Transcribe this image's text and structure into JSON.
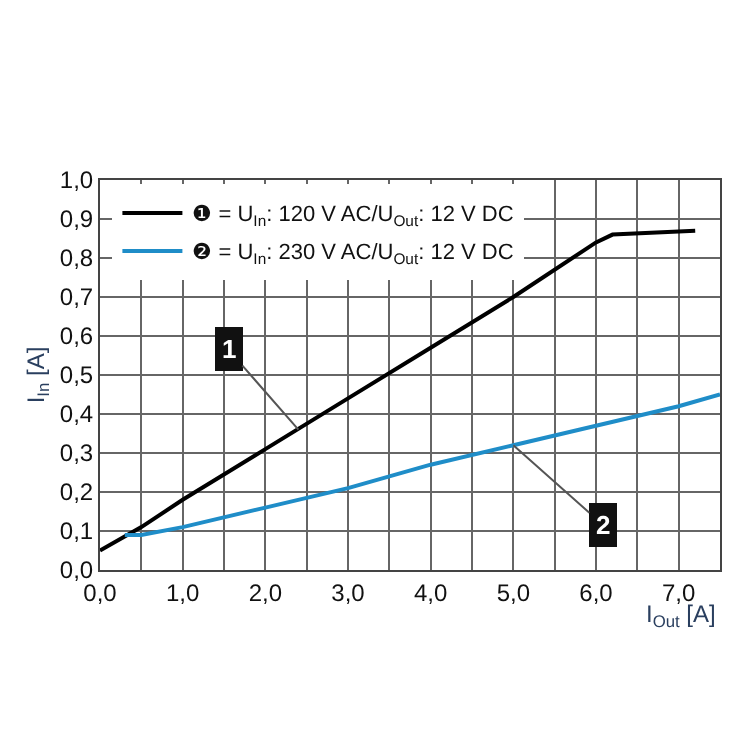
{
  "chart_data": {
    "type": "line",
    "xlabel": "I$_{Out}$ [A]",
    "ylabel": "I$_{In}$ [A]",
    "series": [
      {
        "name": "❶ = U$_{In}$: 120 V AC/U$_{Out}$: 12 V DC",
        "color": "#000000",
        "x": [
          0,
          0.5,
          1,
          2,
          3,
          4,
          5,
          6,
          6.2,
          7.2
        ],
        "values": [
          0.05,
          0.11,
          0.18,
          0.31,
          0.44,
          0.57,
          0.7,
          0.84,
          0.86,
          0.87
        ]
      },
      {
        "name": "❷ = U$_{In}$: 230 V AC/U$_{Out}$: 12 V DC",
        "color": "#1f8dc8",
        "x": [
          0.3,
          0.5,
          1,
          2,
          3,
          4,
          5,
          6,
          7,
          7.5
        ],
        "values": [
          0.09,
          0.09,
          0.11,
          0.16,
          0.21,
          0.27,
          0.32,
          0.37,
          0.42,
          0.45
        ]
      }
    ],
    "annotations": [
      {
        "text": "1",
        "x": 2.4,
        "y": 0.36
      },
      {
        "text": "2",
        "x": 5.0,
        "y": 0.32
      }
    ],
    "xlim": [
      0,
      7.5
    ],
    "xticks": [
      {
        "value": 0,
        "label": "0,0"
      },
      {
        "value": 0.5,
        "label": null
      },
      {
        "value": 1,
        "label": "1,0"
      },
      {
        "value": 1.5,
        "label": null
      },
      {
        "value": 2,
        "label": "2,0"
      },
      {
        "value": 2.5,
        "label": null
      },
      {
        "value": 3,
        "label": "3,0"
      },
      {
        "value": 3.5,
        "label": null
      },
      {
        "value": 4,
        "label": "4,0"
      },
      {
        "value": 4.5,
        "label": null
      },
      {
        "value": 5,
        "label": "5,0"
      },
      {
        "value": 5.5,
        "label": null
      },
      {
        "value": 6,
        "label": "6,0"
      },
      {
        "value": 6.5,
        "label": null
      },
      {
        "value": 7,
        "label": "7,0"
      },
      {
        "value": 7.5,
        "label": null
      }
    ],
    "ylim": [
      0,
      1.0
    ],
    "yticks": [
      {
        "value": 0,
        "label": "0,0"
      },
      {
        "value": 0.1,
        "label": "0,1"
      },
      {
        "value": 0.2,
        "label": "0,2"
      },
      {
        "value": 0.3,
        "label": "0,3"
      },
      {
        "value": 0.4,
        "label": "0,4"
      },
      {
        "value": 0.5,
        "label": "0,5"
      },
      {
        "value": 0.6,
        "label": "0,6"
      },
      {
        "value": 0.7,
        "label": "0,7"
      },
      {
        "value": 0.8,
        "label": "0,8"
      },
      {
        "value": 0.9,
        "label": "0,9"
      },
      {
        "value": 1.0,
        "label": "1,0"
      }
    ],
    "grid": true,
    "legend": "top left",
    "marker": "none",
    "line_style": "solid"
  }
}
